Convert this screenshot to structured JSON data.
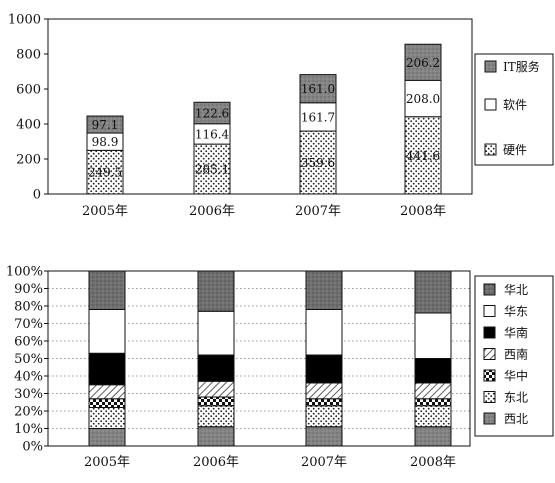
{
  "chart_data": [
    {
      "type": "bar",
      "stacked": true,
      "title": "",
      "xlabel": "",
      "ylabel": "",
      "categories": [
        "2005年",
        "2006年",
        "2007年",
        "2008年"
      ],
      "ylim": [
        0,
        1000
      ],
      "yticks": [
        "0",
        "200",
        "400",
        "600",
        "800",
        "1000"
      ],
      "grid": false,
      "legend_position": "right",
      "series": [
        {
          "name": "硬件",
          "values": [
            249.5,
            285.1,
            359.6,
            441.6
          ],
          "labels": [
            "249.5",
            "285.1",
            "359.6",
            "441.6"
          ],
          "pattern": "dots"
        },
        {
          "name": "软件",
          "values": [
            98.9,
            116.4,
            161.7,
            208.0
          ],
          "labels": [
            "98.9",
            "116.4",
            "161.7",
            "208.0"
          ],
          "pattern": "white"
        },
        {
          "name": "IT服务",
          "values": [
            97.1,
            122.6,
            161.0,
            206.2
          ],
          "labels": [
            "97.1",
            "122.6",
            "161.0",
            "206.2"
          ],
          "pattern": "gray"
        }
      ],
      "colors": {
        "gray": "#7a7a7a",
        "white": "#ffffff",
        "dots": "#ffffff"
      }
    },
    {
      "type": "bar",
      "stacked": true,
      "percent": true,
      "title": "",
      "xlabel": "",
      "ylabel": "",
      "categories": [
        "2005年",
        "2006年",
        "2007年",
        "2008年"
      ],
      "ylim": [
        0,
        100
      ],
      "yticks": [
        "0%",
        "10%",
        "20%",
        "30%",
        "40%",
        "50%",
        "60%",
        "70%",
        "80%",
        "90%",
        "100%"
      ],
      "grid": true,
      "legend_position": "right",
      "series": [
        {
          "name": "西北",
          "values": [
            10,
            11,
            11,
            11
          ],
          "pattern": "gray"
        },
        {
          "name": "东北",
          "values": [
            12,
            12,
            12,
            12
          ],
          "pattern": "dots"
        },
        {
          "name": "华中",
          "values": [
            5,
            5,
            4,
            4
          ],
          "pattern": "checker"
        },
        {
          "name": "西南",
          "values": [
            8,
            9,
            9,
            9
          ],
          "pattern": "hatch"
        },
        {
          "name": "华南",
          "values": [
            18,
            15,
            16,
            14
          ],
          "pattern": "black"
        },
        {
          "name": "华东",
          "values": [
            25,
            25,
            26,
            26
          ],
          "pattern": "white"
        },
        {
          "name": "华北",
          "values": [
            22,
            23,
            22,
            24
          ],
          "pattern": "darkgray"
        }
      ],
      "legend_order": [
        "华北",
        "华东",
        "华南",
        "西南",
        "华中",
        "东北",
        "西北"
      ],
      "colors": {
        "gray": "#8a8a8a",
        "darkgray": "#6e6e6e",
        "black": "#000000",
        "white": "#ffffff"
      }
    }
  ]
}
